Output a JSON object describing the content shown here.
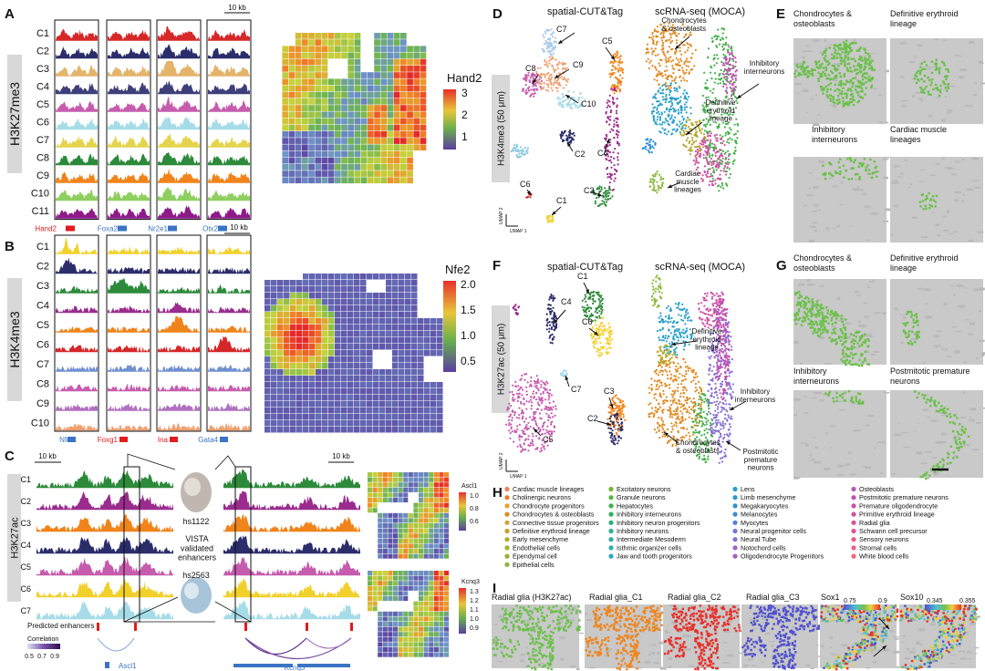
{
  "panels": {
    "A": {
      "letter": "A",
      "mark": "H3K27me3",
      "clusters": [
        "C1",
        "C2",
        "C3",
        "C4",
        "C5",
        "C6",
        "C7",
        "C8",
        "C9",
        "C10",
        "C11"
      ],
      "track_colors": [
        "#d62728",
        "#2b2d6b",
        "#e3b46a",
        "#3e3f7a",
        "#c65cae",
        "#a6dce8",
        "#e4d44c",
        "#2c8a3a",
        "#f0841a",
        "#8fcf60",
        "#8e1a8a"
      ],
      "scalebar": "10 kb",
      "genes": [
        {
          "name": "Hand2",
          "color": "#e41a1c"
        },
        {
          "name": "Foxa2",
          "color": "#3a74c4"
        },
        {
          "name": "Nr2e1",
          "color": "#3a74c4"
        },
        {
          "name": "Otx2",
          "color": "#3a74c4"
        }
      ],
      "map_title": "Hand2",
      "map_ticks": [
        "3",
        "2",
        "1"
      ]
    },
    "B": {
      "letter": "B",
      "mark": "H3K4me3",
      "clusters": [
        "C1",
        "C2",
        "C3",
        "C4",
        "C5",
        "C6",
        "C7",
        "C8",
        "C9",
        "C10"
      ],
      "track_colors": [
        "#f2d02b",
        "#2b2d6b",
        "#2c8a3a",
        "#9a2c8e",
        "#f0841a",
        "#d62728",
        "#6f8fd0",
        "#c65cae",
        "#b070c0",
        "#f0a070"
      ],
      "scalebar": "10 kb",
      "genes": [
        {
          "name": "Nfe2",
          "color": "#3a74c4"
        },
        {
          "name": "Foxg1",
          "color": "#e41a1c"
        },
        {
          "name": "Ina",
          "color": "#e41a1c"
        },
        {
          "name": "Gata4",
          "color": "#3a74c4"
        }
      ],
      "map_title": "Nfe2",
      "map_ticks": [
        "2.0",
        "1.5",
        "1.0",
        "0.5"
      ]
    },
    "C": {
      "letter": "C",
      "mark": "H3K27ac",
      "clusters": [
        "C1",
        "C2",
        "C3",
        "C4",
        "C5",
        "C6",
        "C7"
      ],
      "track_colors": [
        "#2c8a3a",
        "#9a2c8e",
        "#f0841a",
        "#2b2d6b",
        "#c65cae",
        "#f2d02b",
        "#a6dce8"
      ],
      "scalebar_left": "10 kb",
      "scalebar_right": "10 kb",
      "embryo_labels": [
        "hs1122",
        "hs2563"
      ],
      "vista_text": "VISTA\nvalidated\nenhancers",
      "predicted": "Predicted enhancers",
      "genes": [
        {
          "name": "Ascl1",
          "color": "#3a74c4"
        },
        {
          "name": "Kcnq3",
          "color": "#3a74c4"
        }
      ],
      "corr_title": "Correlation",
      "corr_ticks": [
        "0.5",
        "0.7",
        "0.9"
      ],
      "map1": {
        "title": "Ascl1",
        "ticks": [
          "1.0",
          "0.8",
          "0.6"
        ]
      },
      "map2": {
        "title": "Kcnq3",
        "ticks": [
          "1.3",
          "1.2",
          "1.1",
          "1.0",
          "0.9"
        ]
      }
    },
    "D": {
      "letter": "D",
      "title_left": "spatial-CUT&Tag",
      "title_right": "scRNA-seq (MOCA)",
      "mark": "H3K4me3 (50 μm)",
      "clusters": [
        "C7",
        "C8",
        "C9",
        "C10",
        "C5",
        "C4",
        "C2",
        "C3",
        "C6",
        "C1"
      ],
      "annotations": [
        "Chondrocytes\n& osteoblasts",
        "Inhibitory\ninterneurons",
        "Definitive\nerythroid\nlineage",
        "Cardiac\nmuscle\nlineages"
      ],
      "umap": [
        "UMAP 2",
        "UMAP 1"
      ]
    },
    "E": {
      "letter": "E",
      "titles": [
        "Chondrocytes &\nosteoblasts",
        "Definitive erythroid\nlineage",
        "Inhibitory\ninterneurons",
        "Cardiac muscle\nlineages"
      ]
    },
    "F": {
      "letter": "F",
      "title_left": "spatial-CUT&Tag",
      "title_right": "scRNA-seq (MOCA)",
      "mark": "H3K27ac (50 μm)",
      "clusters": [
        "C1",
        "C4",
        "C6",
        "C7",
        "C3",
        "C2",
        "C5"
      ],
      "annotations": [
        "Definitive\nerythroid\nlineage",
        "Inhibitory\ninterneurons",
        "Chondrocytes\n& osteoblasts",
        "Postmitotic\npremature\nneurons"
      ],
      "umap": [
        "UMAP 2",
        "UMAP 1"
      ]
    },
    "G": {
      "letter": "G",
      "titles": [
        "Chondrocytes &\nosteoblasts",
        "Definitive erythroid\nlineage",
        "Inhibitory\ninterneurons",
        "Postmitotic premature\nneurons"
      ]
    },
    "H": {
      "letter": "H",
      "columns": [
        [
          {
            "t": "Cardiac muscle lineages",
            "c": "#e8845a"
          },
          {
            "t": "Cholinergic neurons",
            "c": "#e87a2a"
          },
          {
            "t": "Chondrocyte progenitors",
            "c": "#e8a030"
          },
          {
            "t": "Chondrocytes & osteoblasts",
            "c": "#e08a20"
          },
          {
            "t": "Connective tissue progenitors",
            "c": "#d8a040"
          },
          {
            "t": "Definitive erythroid lineage",
            "c": "#c8a028"
          },
          {
            "t": "Early mesenchyme",
            "c": "#b8a828"
          },
          {
            "t": "Endothelial cells",
            "c": "#a8b030"
          },
          {
            "t": "Ependymal cell",
            "c": "#98b030"
          },
          {
            "t": "Epithelial cells",
            "c": "#88b838"
          }
        ],
        [
          {
            "t": "Excitatory neurons",
            "c": "#70b838"
          },
          {
            "t": "Granule neurons",
            "c": "#58b840"
          },
          {
            "t": "Hepatocytes",
            "c": "#40b048"
          },
          {
            "t": "Inhibitory interneurons",
            "c": "#30b060"
          },
          {
            "t": "Inhibitory neuron progenitors",
            "c": "#28b078"
          },
          {
            "t": "Inhibitory neurons",
            "c": "#28b090"
          },
          {
            "t": "Intermediate Mesoderm",
            "c": "#28b0a0"
          },
          {
            "t": "Isthmic organizer cells",
            "c": "#28b0b0"
          },
          {
            "t": "Jaw and tooth progenitors",
            "c": "#28a8c0"
          }
        ],
        [
          {
            "t": "Lens",
            "c": "#28a0c8"
          },
          {
            "t": "Limb mesenchyme",
            "c": "#2898d0"
          },
          {
            "t": "Megakaryocytes",
            "c": "#3090d8"
          },
          {
            "t": "Melanocytes",
            "c": "#4088d8"
          },
          {
            "t": "Myocytes",
            "c": "#5880d8"
          },
          {
            "t": "Neural progenitor cells",
            "c": "#7078d8"
          },
          {
            "t": "Neural Tube",
            "c": "#8870d0"
          },
          {
            "t": "Notochord cells",
            "c": "#9868c8"
          },
          {
            "t": "Oligodendrocyte Progenitors",
            "c": "#a860c0"
          }
        ],
        [
          {
            "t": "Osteoblasts",
            "c": "#b858b8"
          },
          {
            "t": "Postmitotic premature neurons",
            "c": "#c050b0"
          },
          {
            "t": "Premature oligodendrocyte",
            "c": "#c850a8"
          },
          {
            "t": "Primitive erythroid lineage",
            "c": "#d050a0"
          },
          {
            "t": "Radial glia",
            "c": "#d85098"
          },
          {
            "t": "Schwann cell precursor",
            "c": "#e05090"
          },
          {
            "t": "Sensory neurons",
            "c": "#e85888"
          },
          {
            "t": "Stromal cells",
            "c": "#e86080"
          },
          {
            "t": "White blood cells",
            "c": "#e86878"
          }
        ]
      ]
    },
    "I": {
      "letter": "I",
      "titles": [
        "Radial glia (H3K27ac)",
        "Radial glia_C1",
        "Radial glia_C2",
        "Radial glia_C3",
        "Sox1",
        "Sox10"
      ],
      "sox1_ticks": [
        "0.75",
        "0.9"
      ],
      "sox10_ticks": [
        "0.345",
        "0.355"
      ]
    }
  }
}
